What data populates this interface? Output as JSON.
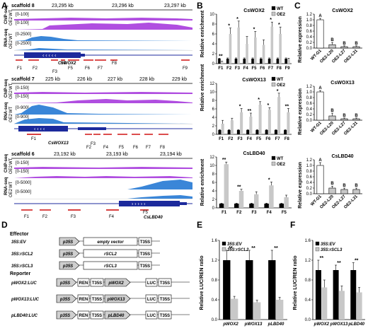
{
  "panels": {
    "A": {
      "label": "A",
      "tracks": [
        {
          "scaffold": "scaffold 8",
          "coords": [
            "23,295 kb",
            "23,296 kb",
            "23,297 kb"
          ],
          "chip_label": "ChIP-seq",
          "rna_label": "RNA-seq",
          "chip_range": [
            "[0-100]",
            "[0-100]"
          ],
          "rna_range": [
            "[0-2500]",
            "[0-2500]"
          ],
          "gene": "CsWOX2",
          "fragments": [
            "F1",
            "F2",
            "F3",
            "F4",
            "F5",
            "F6",
            "F7",
            "F8",
            "F9"
          ]
        },
        {
          "scaffold": "scaffold 7",
          "coords": [
            "225 kb",
            "226 kb",
            "227 kb",
            "228 kb",
            "229 kb"
          ],
          "chip_label": "ChIP-seq",
          "rna_label": "RNA-seq",
          "chip_range": [
            "[0-150]",
            "[0-150]"
          ],
          "rna_range": [
            "[0-900]",
            "[0-900]"
          ],
          "gene": "CsWOX13",
          "fragments": [
            "F1",
            "F2",
            "F3",
            "F4",
            "F5",
            "F6",
            "F7",
            "F8"
          ]
        },
        {
          "scaffold": "scaffold 6",
          "coords": [
            "23,192 kb",
            "23,193 kb",
            "23,194 kb"
          ],
          "chip_label": "ChIP-seq",
          "rna_label": "RNA-seq",
          "chip_range": [
            "[0-150]",
            "[0-150]"
          ],
          "rna_range": [
            "[0-5000]",
            "[0-5000]"
          ],
          "gene": "CsLBD40",
          "fragments": [
            "F1",
            "F2",
            "F3",
            "F4",
            "F5"
          ]
        }
      ],
      "wt_label": "WT",
      "oe_label": "OE2"
    },
    "B": {
      "label": "B",
      "ylabel": "Relative enrichment",
      "legend": [
        "WT",
        "OE2"
      ]
    },
    "C": {
      "label": "C",
      "ylabel": "Relative expression"
    },
    "D": {
      "label": "D",
      "effector_title": "Effector",
      "reporter_title": "Reporter",
      "effectors": [
        {
          "name": "35S:EV",
          "promoter": "p35S",
          "insert": "empty vector",
          "term": "T35S"
        },
        {
          "name": "35S:rSCL2",
          "promoter": "p35S",
          "insert": "rSCL2",
          "term": "T35S"
        },
        {
          "name": "35S:rSCL3",
          "promoter": "p35S",
          "insert": "rSCL3",
          "term": "T35S"
        }
      ],
      "reporters": [
        {
          "name": "pWOX2:LUC",
          "p1": "p35S",
          "ren": "REN",
          "t1": "T35S",
          "promoter": "pWOX2",
          "luc": "LUC",
          "t2": "T35S"
        },
        {
          "name": "pWOX13:LUC",
          "p1": "p35S",
          "ren": "REN",
          "t1": "T35S",
          "promoter": "pWOX13",
          "luc": "LUC",
          "t2": "T35S"
        },
        {
          "name": "pLBD40:LUC",
          "p1": "p35S",
          "ren": "REN",
          "t1": "T35S",
          "promoter": "pLBD40",
          "luc": "LUC",
          "t2": "T35S"
        }
      ]
    },
    "E": {
      "label": "E",
      "ylabel": "Relative LUC/REN ratio"
    },
    "F": {
      "label": "F",
      "ylabel": "Relative LUC/REN ratio"
    }
  },
  "colors": {
    "chip": "#b04ee0",
    "rna": "#3a86d8",
    "gene": "#1c2a9c",
    "fragment": "#cc0000",
    "dark_bar": "#000000",
    "light_bar": "#c8c8c8"
  },
  "chart_data": [
    {
      "type": "bar",
      "id": "B1",
      "title": "CsWOX2",
      "ylabel": "Relative enrichment",
      "categories": [
        "F1",
        "F2",
        "F3",
        "F4",
        "F5",
        "F6",
        "F7",
        "F8",
        "F9"
      ],
      "series": [
        {
          "name": "WT",
          "values": [
            1,
            1,
            1,
            1,
            1,
            1,
            1,
            1,
            1
          ],
          "errors": [
            0.1,
            0.15,
            0.15,
            0.15,
            0.15,
            0.15,
            0.15,
            0.15,
            0.15
          ]
        },
        {
          "name": "OE2",
          "values": [
            0.4,
            6,
            7.3,
            4,
            5.3,
            3.8,
            7.5,
            6,
            0.9
          ],
          "errors": [
            0.1,
            1.2,
            1.3,
            1.5,
            1.2,
            1,
            0.9,
            1.4,
            0.2
          ]
        }
      ],
      "significance": [
        "**",
        "*",
        "*",
        "",
        "*",
        "",
        "*",
        "*",
        ""
      ],
      "ylim": [
        0,
        10
      ],
      "yticks": [
        0,
        2,
        4,
        6,
        8,
        10
      ]
    },
    {
      "type": "bar",
      "id": "B2",
      "title": "CsWOX13",
      "ylabel": "Relative enrichment",
      "categories": [
        "F1",
        "F2",
        "F3",
        "F4",
        "F5",
        "F6",
        "F7",
        "F8"
      ],
      "series": [
        {
          "name": "WT",
          "values": [
            1,
            1,
            1,
            1,
            1,
            1,
            1,
            1
          ],
          "errors": [
            0.1,
            0.1,
            0.1,
            0.1,
            0.1,
            0.1,
            0.1,
            0.1
          ]
        },
        {
          "name": "OE2",
          "values": [
            2.5,
            3.3,
            5.2,
            4.2,
            7,
            5.8,
            8.8,
            5.2
          ],
          "errors": [
            0.8,
            0.5,
            0.9,
            0.8,
            0.7,
            0.5,
            0.9,
            0.9
          ]
        }
      ],
      "significance": [
        "",
        "",
        "*",
        "**",
        "*",
        "*",
        "*",
        "**"
      ],
      "ylim": [
        0,
        12
      ],
      "yticks": [
        0,
        2,
        4,
        6,
        8,
        10,
        12
      ]
    },
    {
      "type": "bar",
      "id": "B3",
      "title": "CsLBD40",
      "ylabel": "Relative enrichment",
      "categories": [
        "F1",
        "F2",
        "F3",
        "F4",
        "F5"
      ],
      "series": [
        {
          "name": "WT",
          "values": [
            1,
            1,
            1,
            1,
            1
          ],
          "errors": [
            0.1,
            0.1,
            0.1,
            0.1,
            0.1
          ]
        },
        {
          "name": "OE2",
          "values": [
            10.3,
            4,
            3.2,
            5.3,
            2.5
          ],
          "errors": [
            0.5,
            0.4,
            0.6,
            0.8,
            0.5
          ]
        }
      ],
      "significance": [
        "**",
        "**",
        "",
        "*",
        ""
      ],
      "ylim": [
        0,
        12
      ],
      "yticks": [
        0,
        2,
        4,
        6,
        8,
        10,
        12
      ]
    },
    {
      "type": "bar",
      "id": "C1",
      "title": "CsWOX2",
      "ylabel": "Relative expression",
      "categories": [
        "WT-G1",
        "OE2-L20",
        "OE2-L27",
        "OE2-L31"
      ],
      "values": [
        1,
        0.12,
        0.05,
        0.05
      ],
      "errors": [
        0.05,
        0.08,
        0.03,
        0.03
      ],
      "letters": [
        "A",
        "B",
        "B",
        "B"
      ],
      "ylim": [
        0,
        1.2
      ],
      "yticks": [
        0,
        0.2,
        0.4,
        0.6,
        0.8,
        1.0,
        1.2
      ]
    },
    {
      "type": "bar",
      "id": "C2",
      "title": "CsWOX13",
      "ylabel": "Relative expression",
      "categories": [
        "WT-G1",
        "OE2-L20",
        "OE2-L27",
        "OE2-L31"
      ],
      "values": [
        1,
        0.15,
        0.05,
        0.05
      ],
      "errors": [
        0.05,
        0.1,
        0.03,
        0.03
      ],
      "letters": [
        "A",
        "B",
        "B",
        "B"
      ],
      "ylim": [
        0,
        1.2
      ],
      "yticks": [
        0,
        0.2,
        0.4,
        0.6,
        0.8,
        1.0,
        1.2
      ]
    },
    {
      "type": "bar",
      "id": "C3",
      "title": "CsLBD40",
      "ylabel": "Relative expression",
      "categories": [
        "WT-G1",
        "OE2-L20",
        "OE2-L27",
        "OE2-L31"
      ],
      "values": [
        1,
        0.2,
        0.15,
        0.15
      ],
      "errors": [
        0.1,
        0.07,
        0.05,
        0.05
      ],
      "letters": [
        "A",
        "B",
        "B",
        "B"
      ],
      "ylim": [
        0,
        1.2
      ],
      "yticks": [
        0,
        0.2,
        0.4,
        0.6,
        0.8,
        1.0,
        1.2
      ]
    },
    {
      "type": "bar",
      "id": "E",
      "ylabel": "Relative LUC/REN ratio",
      "categories": [
        "pWOX2",
        "pWOX13",
        "pLBD40"
      ],
      "series": [
        {
          "name": "35S:EV",
          "values": [
            1.2,
            1.2,
            1.2
          ],
          "errors": [
            0.2,
            0.2,
            0.2
          ]
        },
        {
          "name": "35S:rSCL2",
          "values": [
            0.42,
            0.35,
            0.4
          ],
          "errors": [
            0.05,
            0.04,
            0.05
          ]
        }
      ],
      "significance": [
        "**",
        "**",
        "**"
      ],
      "ylim": [
        0,
        1.6
      ],
      "yticks": [
        0,
        0.4,
        0.8,
        1.2,
        1.6
      ]
    },
    {
      "type": "bar",
      "id": "F",
      "ylabel": "Relative LUC/REN ratio",
      "categories": [
        "pWOX2",
        "pWOX13",
        "pLBD40"
      ],
      "series": [
        {
          "name": "35S:EV",
          "values": [
            1.0,
            1.0,
            1.0
          ],
          "errors": [
            0.2,
            0.1,
            0.15
          ]
        },
        {
          "name": "35S:rSCL3",
          "values": [
            0.65,
            0.58,
            0.55
          ],
          "errors": [
            0.15,
            0.1,
            0.1
          ]
        }
      ],
      "significance": [
        "**",
        "**",
        "**"
      ],
      "ylim": [
        0,
        1.6
      ],
      "yticks": [
        0,
        0.4,
        0.8,
        1.2,
        1.6
      ]
    }
  ]
}
